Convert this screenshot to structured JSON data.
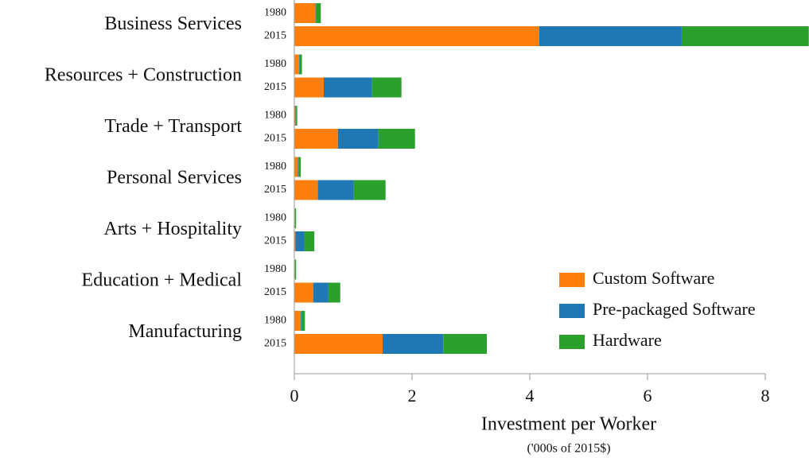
{
  "chart_data": {
    "type": "stacked-barh",
    "categories": [
      "Business Services",
      "Resources + Construction",
      "Trade + Transport",
      "Personal Services",
      "Arts + Hospitality",
      "Education + Medical",
      "Manufacturing"
    ],
    "years": [
      "1980",
      "2015"
    ],
    "series": [
      {
        "name": "Custom Software",
        "color": "#ff7f0e",
        "values": [
          [
            0.36,
            4.16
          ],
          [
            0.08,
            0.5
          ],
          [
            0.02,
            0.74
          ],
          [
            0.06,
            0.4
          ],
          [
            0.01,
            0.02
          ],
          [
            0.01,
            0.32
          ],
          [
            0.11,
            1.5
          ]
        ]
      },
      {
        "name": "Pre-packaged Software",
        "color": "#1f77b4",
        "values": [
          [
            0.01,
            2.42
          ],
          [
            0.01,
            0.82
          ],
          [
            0.01,
            0.68
          ],
          [
            0.01,
            0.61
          ],
          [
            0.0,
            0.15
          ],
          [
            0.0,
            0.26
          ],
          [
            0.01,
            1.03
          ]
        ]
      },
      {
        "name": "Hardware",
        "color": "#2ca02c",
        "values": [
          [
            0.08,
            2.16
          ],
          [
            0.04,
            0.5
          ],
          [
            0.02,
            0.63
          ],
          [
            0.04,
            0.54
          ],
          [
            0.02,
            0.17
          ],
          [
            0.02,
            0.2
          ],
          [
            0.06,
            0.74
          ]
        ]
      }
    ],
    "xlim": [
      0,
      8.75
    ],
    "xticks": [
      0,
      2,
      4,
      6,
      8
    ],
    "xlabel": "Investment per Worker",
    "xlabel_note": "('000s of 2015$)",
    "legend": "lower right"
  }
}
